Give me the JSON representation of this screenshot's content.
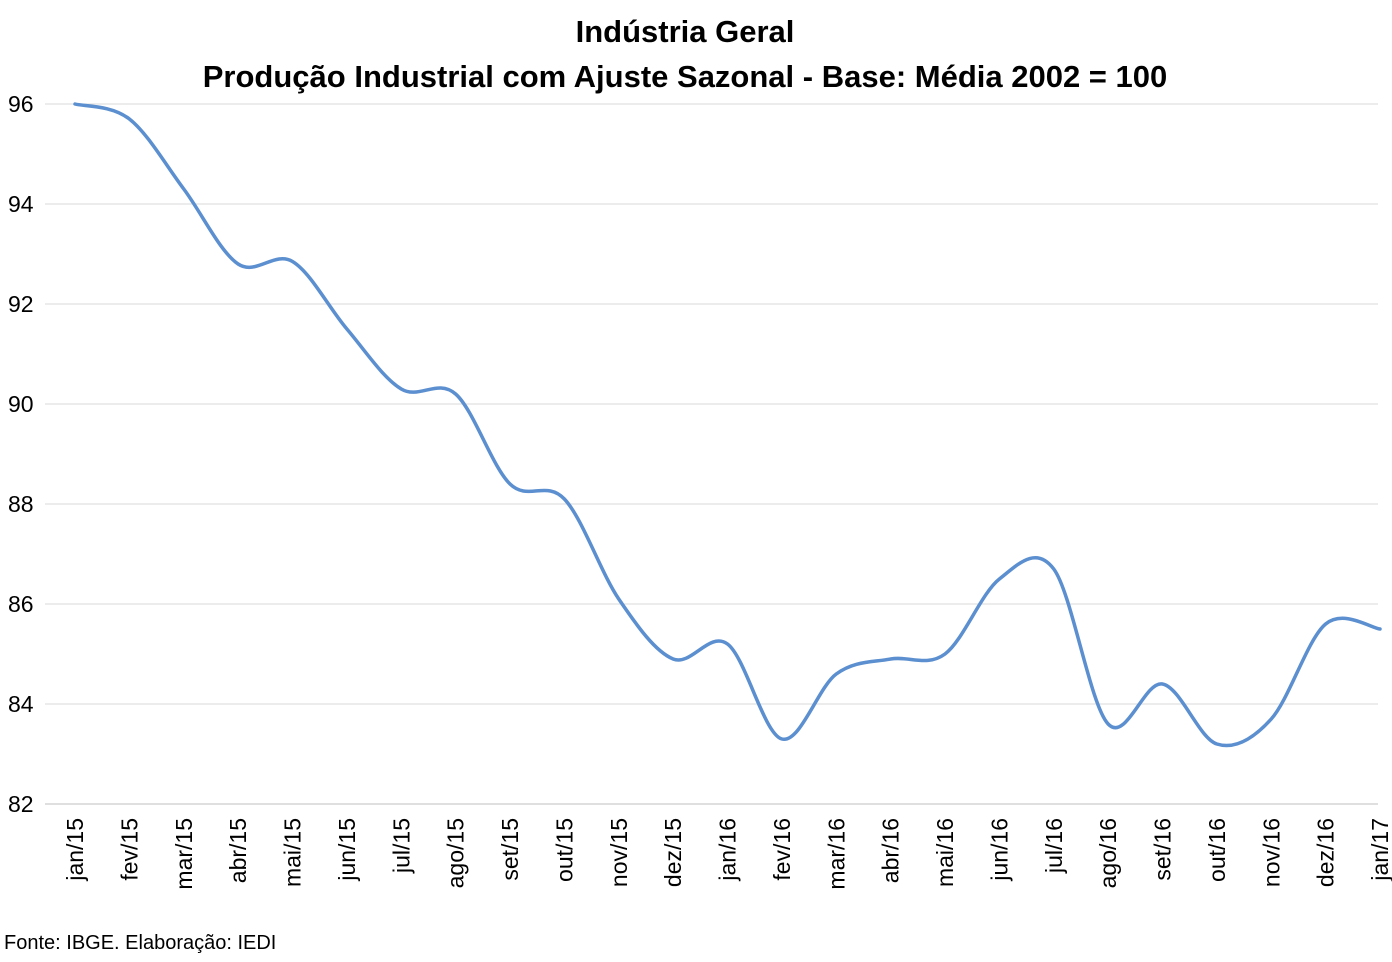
{
  "chart_data": {
    "type": "line",
    "title": "Indústria Geral",
    "subtitle": "Produção Industrial com Ajuste Sazonal - Base: Média 2002 = 100",
    "xlabel": "",
    "ylabel": "",
    "ylim": [
      82,
      96
    ],
    "yticks": [
      "82",
      "84",
      "86",
      "88",
      "90",
      "92",
      "94",
      "96"
    ],
    "grid": true,
    "legend": "none",
    "categories": [
      "jan/15",
      "fev/15",
      "mar/15",
      "abr/15",
      "mai/15",
      "jun/15",
      "jul/15",
      "ago/15",
      "set/15",
      "out/15",
      "nov/15",
      "dez/15",
      "jan/16",
      "fev/16",
      "mar/16",
      "abr/16",
      "mai/16",
      "jun/16",
      "jul/16",
      "ago/16",
      "set/16",
      "out/16",
      "nov/16",
      "dez/16",
      "jan/17"
    ],
    "series": [
      {
        "name": "Indústria Geral",
        "color": "#5b8fcf",
        "values": [
          96.0,
          95.7,
          94.3,
          92.8,
          92.85,
          91.5,
          90.3,
          90.2,
          88.4,
          88.1,
          86.1,
          84.9,
          85.2,
          83.3,
          84.6,
          84.9,
          85.0,
          86.5,
          86.7,
          83.6,
          84.4,
          83.2,
          83.7,
          85.6,
          85.5
        ]
      }
    ]
  },
  "source": "Fonte: IBGE. Elaboração: IEDI"
}
